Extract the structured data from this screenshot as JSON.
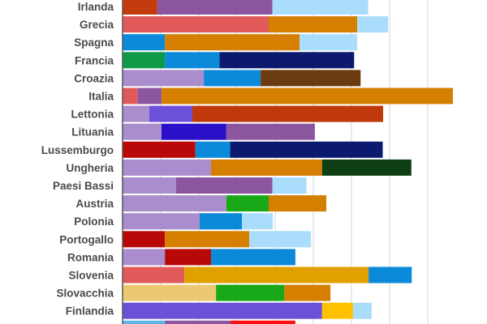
{
  "chart_data": {
    "type": "bar",
    "orientation": "horizontal",
    "stacked": true,
    "title": "",
    "xlabel": "",
    "ylabel": "",
    "grid": true,
    "xlim": [
      0,
      90
    ],
    "x_gridlines": [
      10,
      20,
      30,
      40,
      50,
      60,
      70,
      80
    ],
    "categories": [
      "Irlanda",
      "Grecia",
      "Spagna",
      "Francia",
      "Croazia",
      "Italia",
      "Lettonia",
      "Lituania",
      "Lussemburgo",
      "Ungheria",
      "Paesi Bassi",
      "Austria",
      "Polonia",
      "Portogallo",
      "Romania",
      "Slovenia",
      "Slovacchia",
      "Finlandia",
      ""
    ],
    "rows": [
      {
        "segments": [
          {
            "value": 9.1,
            "color": "#C23B0C"
          },
          {
            "value": 30.2,
            "color": "#8B55A0"
          },
          {
            "value": 25.1,
            "color": "#A9DDFB"
          }
        ]
      },
      {
        "segments": [
          {
            "value": 38.3,
            "color": "#E05A5A"
          },
          {
            "value": 23.2,
            "color": "#D47F00"
          },
          {
            "value": 8.1,
            "color": "#A9DDFB"
          }
        ]
      },
      {
        "segments": [
          {
            "value": 11.1,
            "color": "#0A8AD8"
          },
          {
            "value": 35.3,
            "color": "#D47F00"
          },
          {
            "value": 15.1,
            "color": "#A9DDFB"
          }
        ]
      },
      {
        "segments": [
          {
            "value": 11.1,
            "color": "#0E9A48"
          },
          {
            "value": 14.3,
            "color": "#0A8AD8"
          },
          {
            "value": 35.3,
            "color": "#0B1A6E"
          }
        ]
      },
      {
        "segments": [
          {
            "value": 21.3,
            "color": "#A98DCC"
          },
          {
            "value": 14.9,
            "color": "#0A8AD8"
          },
          {
            "value": 26.2,
            "color": "#6B3A0E"
          }
        ]
      },
      {
        "segments": [
          {
            "value": 4.0,
            "color": "#E05A5A"
          },
          {
            "value": 6.2,
            "color": "#8B55A0"
          },
          {
            "value": 76.4,
            "color": "#D47F00"
          }
        ]
      },
      {
        "segments": [
          {
            "value": 7.0,
            "color": "#A98DCC"
          },
          {
            "value": 11.3,
            "color": "#6D50D8"
          },
          {
            "value": 50.0,
            "color": "#C0390B"
          }
        ]
      },
      {
        "segments": [
          {
            "value": 10.2,
            "color": "#A98DCC"
          },
          {
            "value": 17.0,
            "color": "#2A10C8"
          },
          {
            "value": 23.2,
            "color": "#8B55A0"
          }
        ]
      },
      {
        "segments": [
          {
            "value": 19.1,
            "color": "#B80808"
          },
          {
            "value": 9.1,
            "color": "#0A8AD8"
          },
          {
            "value": 40.0,
            "color": "#0B1A6E"
          }
        ]
      },
      {
        "segments": [
          {
            "value": 23.2,
            "color": "#A98DCC"
          },
          {
            "value": 29.1,
            "color": "#D47F00"
          },
          {
            "value": 23.4,
            "color": "#0E3E14"
          }
        ]
      },
      {
        "segments": [
          {
            "value": 14.0,
            "color": "#A98DCC"
          },
          {
            "value": 25.3,
            "color": "#8B55A0"
          },
          {
            "value": 8.9,
            "color": "#A9DDFB"
          }
        ]
      },
      {
        "segments": [
          {
            "value": 27.2,
            "color": "#A98DCC"
          },
          {
            "value": 11.1,
            "color": "#18A818"
          },
          {
            "value": 15.1,
            "color": "#D47F00"
          }
        ]
      },
      {
        "segments": [
          {
            "value": 20.2,
            "color": "#A98DCC"
          },
          {
            "value": 11.1,
            "color": "#0A8AD8"
          },
          {
            "value": 8.1,
            "color": "#A9DDFB"
          }
        ]
      },
      {
        "segments": [
          {
            "value": 11.1,
            "color": "#B80808"
          },
          {
            "value": 22.1,
            "color": "#D47F00"
          },
          {
            "value": 16.2,
            "color": "#A9DDFB"
          }
        ]
      },
      {
        "segments": [
          {
            "value": 11.1,
            "color": "#A98DCC"
          },
          {
            "value": 12.1,
            "color": "#B80808"
          },
          {
            "value": 22.1,
            "color": "#0A8AD8"
          }
        ]
      },
      {
        "segments": [
          {
            "value": 16.2,
            "color": "#E05A5A"
          },
          {
            "value": 48.3,
            "color": "#E0A000"
          },
          {
            "value": 11.3,
            "color": "#0A8AD8"
          }
        ]
      },
      {
        "segments": [
          {
            "value": 24.5,
            "color": "#ECC870"
          },
          {
            "value": 17.9,
            "color": "#18A818"
          },
          {
            "value": 12.1,
            "color": "#D47F00"
          }
        ]
      },
      {
        "segments": [
          {
            "value": 52.3,
            "color": "#6B50D8"
          },
          {
            "value": 8.1,
            "color": "#FFC000"
          },
          {
            "value": 4.9,
            "color": "#A9DDFB"
          }
        ]
      },
      {
        "segments": [
          {
            "value": 11.1,
            "color": "#5DB8E8"
          },
          {
            "value": 17.2,
            "color": "#8B55A0"
          },
          {
            "value": 17.0,
            "color": "#FF1010"
          }
        ]
      }
    ]
  }
}
